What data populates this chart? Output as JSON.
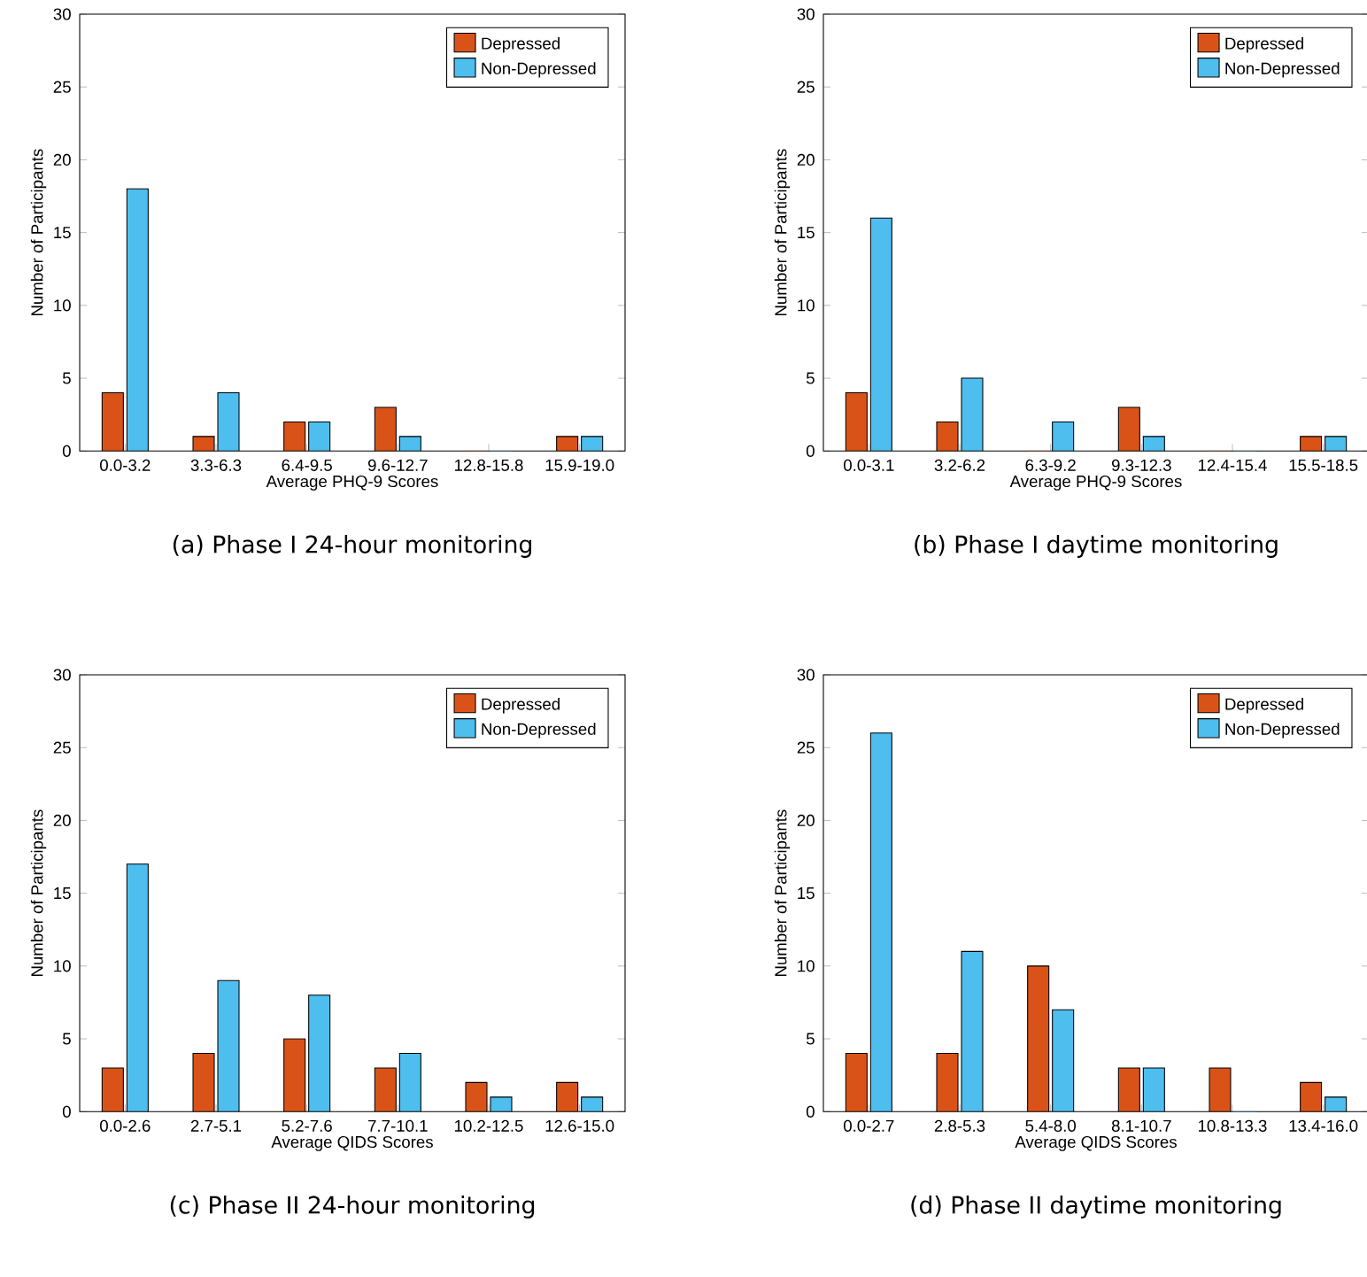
{
  "chart_data": [
    {
      "type": "bar",
      "categories": [
        "0.0-3.2",
        "3.3-6.3",
        "6.4-9.5",
        "9.6-12.7",
        "12.8-15.8",
        "15.9-19.0"
      ],
      "series": [
        {
          "name": "Depressed",
          "color": "#d95319",
          "values": [
            4,
            1,
            2,
            3,
            0,
            1
          ]
        },
        {
          "name": "Non-Depressed",
          "color": "#4dbeee",
          "values": [
            18,
            4,
            2,
            1,
            0,
            1
          ]
        }
      ],
      "ylim": [
        0,
        30
      ],
      "yticks": [
        0,
        5,
        10,
        15,
        20,
        25,
        30
      ],
      "xlabel": "Average PHQ-9 Scores",
      "ylabel": "Number of Participants",
      "legend": "top right",
      "annotations": [
        "(a) Phase I 24-hour monitoring"
      ]
    },
    {
      "type": "bar",
      "categories": [
        "0.0-3.1",
        "3.2-6.2",
        "6.3-9.2",
        "9.3-12.3",
        "12.4-15.4",
        "15.5-18.5"
      ],
      "series": [
        {
          "name": "Depressed",
          "color": "#d95319",
          "values": [
            4,
            2,
            0,
            3,
            0,
            1
          ]
        },
        {
          "name": "Non-Depressed",
          "color": "#4dbeee",
          "values": [
            16,
            5,
            2,
            1,
            0,
            1
          ]
        }
      ],
      "ylim": [
        0,
        30
      ],
      "yticks": [
        0,
        5,
        10,
        15,
        20,
        25,
        30
      ],
      "xlabel": "Average PHQ-9 Scores",
      "ylabel": "Number of Participants",
      "legend": "top right",
      "annotations": [
        "(b) Phase I daytime monitoring"
      ]
    },
    {
      "type": "bar",
      "categories": [
        "0.0-2.6",
        "2.7-5.1",
        "5.2-7.6",
        "7.7-10.1",
        "10.2-12.5",
        "12.6-15.0"
      ],
      "series": [
        {
          "name": "Depressed",
          "color": "#d95319",
          "values": [
            3,
            4,
            5,
            3,
            2,
            2
          ]
        },
        {
          "name": "Non-Depressed",
          "color": "#4dbeee",
          "values": [
            17,
            9,
            8,
            4,
            1,
            1
          ]
        }
      ],
      "ylim": [
        0,
        30
      ],
      "yticks": [
        0,
        5,
        10,
        15,
        20,
        25,
        30
      ],
      "xlabel": "Average QIDS Scores",
      "ylabel": "Number of Participants",
      "legend": "top right",
      "annotations": [
        "(c) Phase II 24-hour monitoring"
      ]
    },
    {
      "type": "bar",
      "categories": [
        "0.0-2.7",
        "2.8-5.3",
        "5.4-8.0",
        "8.1-10.7",
        "10.8-13.3",
        "13.4-16.0"
      ],
      "series": [
        {
          "name": "Depressed",
          "color": "#d95319",
          "values": [
            4,
            4,
            10,
            3,
            3,
            2
          ]
        },
        {
          "name": "Non-Depressed",
          "color": "#4dbeee",
          "values": [
            26,
            11,
            7,
            3,
            0,
            1
          ]
        }
      ],
      "ylim": [
        0,
        30
      ],
      "yticks": [
        0,
        5,
        10,
        15,
        20,
        25,
        30
      ],
      "xlabel": "Average QIDS Scores",
      "ylabel": "Number of Participants",
      "legend": "top right",
      "annotations": [
        "(d) Phase II daytime monitoring"
      ]
    }
  ]
}
